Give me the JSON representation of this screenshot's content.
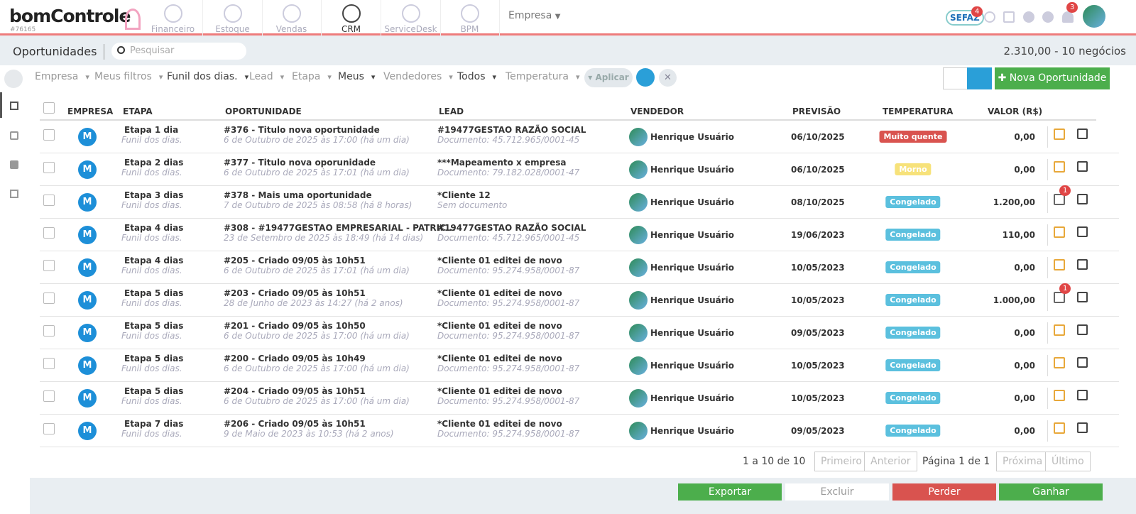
{
  "header": {
    "logo": "bomControle",
    "account": "#76165",
    "nav": [
      "Financeiro",
      "Estoque",
      "Vendas",
      "CRM",
      "ServiceDesk",
      "BPM"
    ],
    "active_nav": 3,
    "company": "Empresa",
    "sefaz": "SEFAZ",
    "sefaz_badge": "4",
    "notifications_badge": "3"
  },
  "page": {
    "title": "Oportunidades",
    "search_placeholder": "Pesquisar",
    "summary": "2.310,00 - 10 negócios"
  },
  "filters": [
    {
      "label": "Empresa",
      "selected": false
    },
    {
      "label": "Meus filtros",
      "selected": false
    },
    {
      "label": "Funil dos dias.",
      "selected": true
    },
    {
      "label": "Lead",
      "selected": false
    },
    {
      "label": "Etapa",
      "selected": false
    },
    {
      "label": "Meus",
      "selected": true
    },
    {
      "label": "Vendedores",
      "selected": false
    },
    {
      "label": "Todos",
      "selected": true
    },
    {
      "label": "Temperatura",
      "selected": false
    }
  ],
  "buttons": {
    "apply": "Aplicar",
    "new": "Nova Oportunidade"
  },
  "table": {
    "headers": [
      "EMPRESA",
      "ETAPA",
      "OPORTUNIDADE",
      "LEAD",
      "VENDEDOR",
      "PREVISÃO",
      "TEMPERATURA",
      "VALOR (R$)"
    ],
    "rows": [
      {
        "avatar": "M",
        "etapa": "Etapa 1 dia",
        "funil": "Funil dos dias.",
        "title": "#376 - Titulo nova oportunidade",
        "date": "6 de Outubro de 2025 às 17:00 (há um dia)",
        "lead": "#19477GESTAO RAZÃO SOCIAL",
        "doc": "Documento: 45.712.965/0001-45",
        "vendedor": "Henrique Usuário",
        "previsao": "06/10/2025",
        "temperatura": "Muito quente",
        "temp_color": "#d9534f",
        "valor": "0,00"
      },
      {
        "avatar": "M",
        "etapa": "Etapa 2 dias",
        "funil": "Funil dos dias.",
        "title": "#377 - Titulo nova oporunidade",
        "date": "6 de Outubro de 2025 às 17:01 (há um dia)",
        "lead": "***Mapeamento x empresa",
        "doc": "Documento: 79.182.028/0001-47",
        "vendedor": "Henrique Usuário",
        "previsao": "06/10/2025",
        "temperatura": "Morno",
        "temp_color": "#f7e27a",
        "valor": "0,00"
      },
      {
        "avatar": "M",
        "etapa": "Etapa 3 dias",
        "funil": "Funil dos dias.",
        "title": "#378 - Mais uma oportunidade",
        "date": "7 de Outubro de 2025 às 08:58 (há 8 horas)",
        "lead": "*Cliente 12",
        "doc": "Sem documento",
        "vendedor": "Henrique Usuário",
        "previsao": "08/10/2025",
        "temperatura": "Congelado",
        "temp_color": "#5bc0de",
        "valor": "1.200,00",
        "badge": "1"
      },
      {
        "avatar": "M",
        "etapa": "Etapa 4 dias",
        "funil": "Funil dos dias.",
        "title": "#308 - #19477GESTAO EMPRESARIAL - PATRIC...",
        "date": "23 de Setembro de 2025 às 18:49 (há 14 dias)",
        "lead": "#19477GESTAO RAZÃO SOCIAL",
        "doc": "Documento: 45.712.965/0001-45",
        "vendedor": "Henrique Usuário",
        "previsao": "19/06/2023",
        "temperatura": "Congelado",
        "temp_color": "#5bc0de",
        "valor": "110,00"
      },
      {
        "avatar": "M",
        "etapa": "Etapa 4 dias",
        "funil": "Funil dos dias.",
        "title": "#205 - Criado 09/05 às 10h51",
        "date": "6 de Outubro de 2025 às 17:01 (há um dia)",
        "lead": "*Cliente 01 editei de novo",
        "doc": "Documento: 95.274.958/0001-87",
        "vendedor": "Henrique Usuário",
        "previsao": "10/05/2023",
        "temperatura": "Congelado",
        "temp_color": "#5bc0de",
        "valor": "0,00"
      },
      {
        "avatar": "M",
        "etapa": "Etapa 5 dias",
        "funil": "Funil dos dias.",
        "title": "#203 - Criado 09/05 às 10h51",
        "date": "28 de Junho de 2023 às 14:27 (há 2 anos)",
        "lead": "*Cliente 01 editei de novo",
        "doc": "Documento: 95.274.958/0001-87",
        "vendedor": "Henrique Usuário",
        "previsao": "10/05/2023",
        "temperatura": "Congelado",
        "temp_color": "#5bc0de",
        "valor": "1.000,00",
        "badge": "1"
      },
      {
        "avatar": "M",
        "etapa": "Etapa 5 dias",
        "funil": "Funil dos dias.",
        "title": "#201 - Criado 09/05 às 10h50",
        "date": "6 de Outubro de 2025 às 17:00 (há um dia)",
        "lead": "*Cliente 01 editei de novo",
        "doc": "Documento: 95.274.958/0001-87",
        "vendedor": "Henrique Usuário",
        "previsao": "09/05/2023",
        "temperatura": "Congelado",
        "temp_color": "#5bc0de",
        "valor": "0,00"
      },
      {
        "avatar": "M",
        "etapa": "Etapa 5 dias",
        "funil": "Funil dos dias.",
        "title": "#200 - Criado 09/05 às 10h49",
        "date": "6 de Outubro de 2025 às 17:00 (há um dia)",
        "lead": "*Cliente 01 editei de novo",
        "doc": "Documento: 95.274.958/0001-87",
        "vendedor": "Henrique Usuário",
        "previsao": "10/05/2023",
        "temperatura": "Congelado",
        "temp_color": "#5bc0de",
        "valor": "0,00"
      },
      {
        "avatar": "M",
        "etapa": "Etapa 5 dias",
        "funil": "Funil dos dias.",
        "title": "#204 - Criado 09/05 às 10h51",
        "date": "6 de Outubro de 2025 às 17:00 (há um dia)",
        "lead": "*Cliente 01 editei de novo",
        "doc": "Documento: 95.274.958/0001-87",
        "vendedor": "Henrique Usuário",
        "previsao": "10/05/2023",
        "temperatura": "Congelado",
        "temp_color": "#5bc0de",
        "valor": "0,00"
      },
      {
        "avatar": "M",
        "etapa": "Etapa 7 dias",
        "funil": "Funil dos dias.",
        "title": "#206 - Criado 09/05 às 10h51",
        "date": "9 de Maio de 2023 às 10:53 (há 2 anos)",
        "lead": "*Cliente 01 editei de novo",
        "doc": "Documento: 95.274.958/0001-87",
        "vendedor": "Henrique Usuário",
        "previsao": "09/05/2023",
        "temperatura": "Congelado",
        "temp_color": "#5bc0de",
        "valor": "0,00"
      }
    ]
  },
  "pagination": {
    "range": "1 a 10 de 10",
    "first": "Primeiro",
    "previous": "Anterior",
    "page": "Página 1 de 1",
    "next": "Próxima",
    "last": "Último"
  },
  "footer": {
    "export": "Exportar",
    "delete": "Excluir",
    "lose": "Perder",
    "win": "Ganhar"
  }
}
